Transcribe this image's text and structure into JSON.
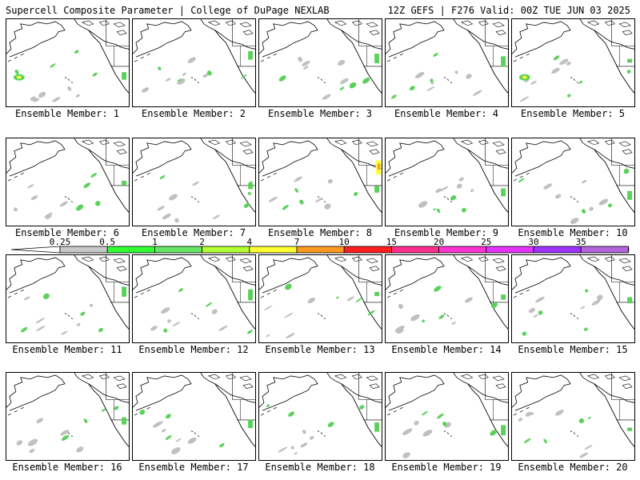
{
  "header": {
    "title_left": "Supercell Composite Parameter | College of DuPage NEXLAB",
    "title_right": "12Z GEFS | F276 Valid: 00Z TUE JUN 03 2025"
  },
  "panel_label_prefix": "Ensemble Member: ",
  "members": [
    1,
    2,
    3,
    4,
    5,
    6,
    7,
    8,
    9,
    10,
    11,
    12,
    13,
    14,
    15,
    16,
    17,
    18,
    19,
    20
  ],
  "colorbar": {
    "levels": [
      "0.25",
      "0.5",
      "1",
      "2",
      "4",
      "7",
      "10",
      "15",
      "20",
      "25",
      "30",
      "35"
    ],
    "colors": [
      "#c8c8c8",
      "#32ff32",
      "#64e664",
      "#b4ff32",
      "#ffff32",
      "#ff9a1e",
      "#ff1e1e",
      "#ff2d8c",
      "#ff32d2",
      "#e632ff",
      "#a032ff",
      "#b464dc"
    ],
    "end_colors": {
      "low": "#ffffff",
      "high": "#32ffff"
    }
  },
  "map_colors": {
    "coast": "#000000",
    "gray": "#c0c0c0",
    "green": "#5ad25a",
    "yellow": "#ffff32",
    "orange": "#ff9a1e"
  }
}
